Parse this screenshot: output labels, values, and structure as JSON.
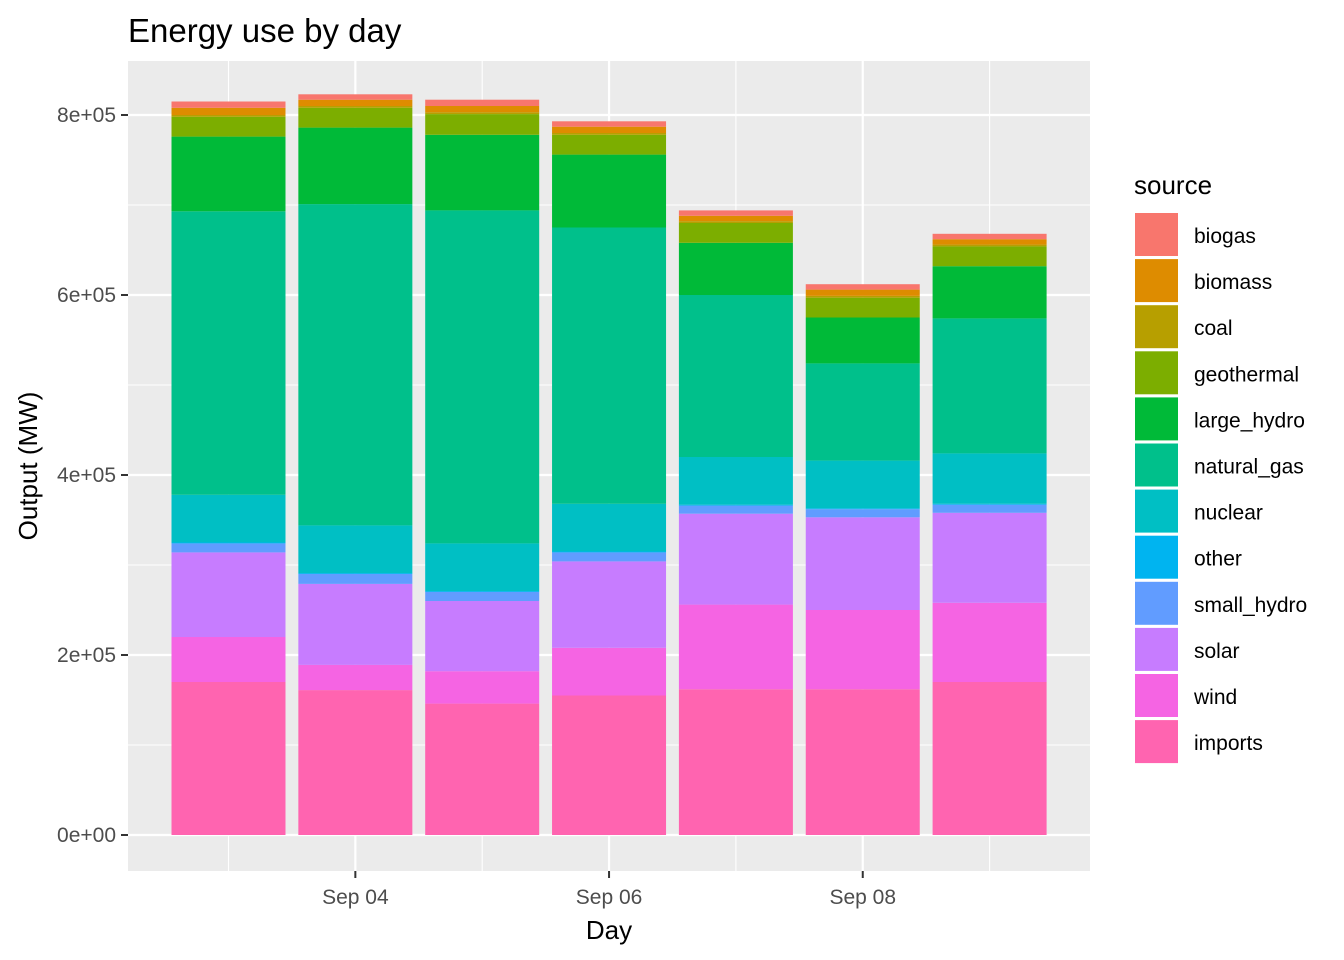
{
  "chart_data": {
    "type": "bar",
    "stacked": true,
    "title": "Energy use by day",
    "xlabel": "Day",
    "ylabel": "Output (MW)",
    "x_ticks": [
      "Sep 04",
      "Sep 06",
      "Sep 08"
    ],
    "y_ticks": [
      "0e+00",
      "2e+05",
      "4e+05",
      "6e+05",
      "8e+05"
    ],
    "y_tick_values": [
      0,
      200000,
      400000,
      600000,
      800000
    ],
    "ylim": [
      -40000,
      860000
    ],
    "grid": true,
    "legend_title": "source",
    "legend_position": "right",
    "categories": [
      "2019-09-03",
      "2019-09-04",
      "2019-09-05",
      "2019-09-06",
      "2019-09-07",
      "2019-09-08",
      "2019-09-09"
    ],
    "stack_order_bottom_to_top": [
      "imports",
      "wind",
      "solar",
      "small_hydro",
      "other",
      "nuclear",
      "natural_gas",
      "large_hydro",
      "geothermal",
      "coal",
      "biomass",
      "biogas"
    ],
    "series": [
      {
        "name": "biogas",
        "color": "#F8766D",
        "values": [
          7000,
          6000,
          7000,
          6000,
          6000,
          6000,
          6000
        ]
      },
      {
        "name": "biomass",
        "color": "#DE8C00",
        "values": [
          8000,
          7000,
          7000,
          7000,
          6000,
          7000,
          6000
        ]
      },
      {
        "name": "coal",
        "color": "#B79F00",
        "values": [
          2000,
          2000,
          2000,
          2000,
          2000,
          2000,
          2000
        ]
      },
      {
        "name": "geothermal",
        "color": "#7CAE00",
        "values": [
          22000,
          22000,
          23000,
          22000,
          22000,
          22000,
          22000
        ]
      },
      {
        "name": "large_hydro",
        "color": "#00BA38",
        "values": [
          83000,
          85000,
          84000,
          81000,
          58000,
          51000,
          58000
        ]
      },
      {
        "name": "natural_gas",
        "color": "#00C08B",
        "values": [
          315000,
          357000,
          370000,
          307000,
          180000,
          108000,
          150000
        ]
      },
      {
        "name": "nuclear",
        "color": "#00BFC4",
        "values": [
          53000,
          53000,
          53000,
          53000,
          53000,
          53000,
          56000
        ]
      },
      {
        "name": "other",
        "color": "#00B4F0",
        "values": [
          1000,
          1000,
          1000,
          1000,
          1000,
          1000,
          1000
        ]
      },
      {
        "name": "small_hydro",
        "color": "#619CFF",
        "values": [
          10000,
          11000,
          10000,
          10000,
          9000,
          9000,
          9000
        ]
      },
      {
        "name": "solar",
        "color": "#C77CFF",
        "values": [
          94000,
          90000,
          78000,
          96000,
          101000,
          103000,
          100000
        ]
      },
      {
        "name": "wind",
        "color": "#F564E3",
        "values": [
          50000,
          28000,
          36000,
          53000,
          94000,
          88000,
          88000
        ]
      },
      {
        "name": "imports",
        "color": "#FF64B0",
        "values": [
          170000,
          161000,
          146000,
          155000,
          162000,
          162000,
          170000
        ]
      }
    ]
  }
}
